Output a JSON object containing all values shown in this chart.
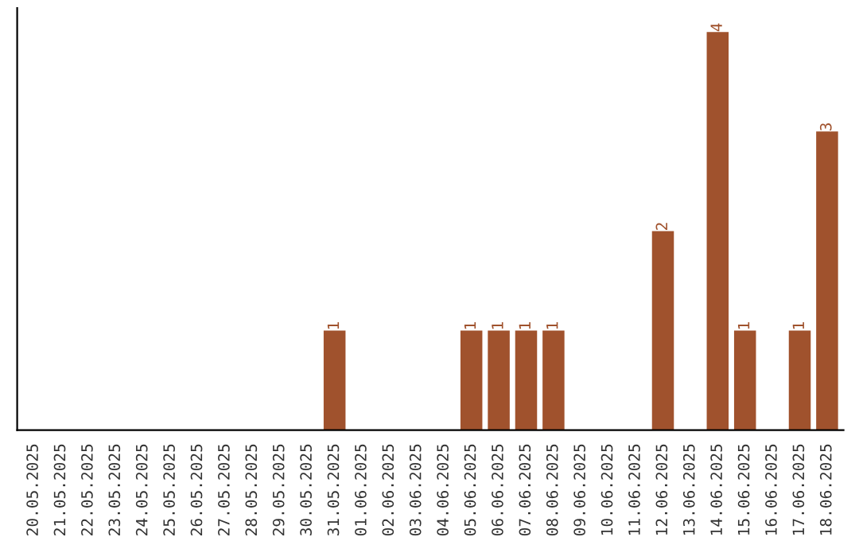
{
  "chart_data": {
    "type": "bar",
    "categories": [
      "20.05.2025",
      "21.05.2025",
      "22.05.2025",
      "23.05.2025",
      "24.05.2025",
      "25.05.2025",
      "26.05.2025",
      "27.05.2025",
      "28.05.2025",
      "29.05.2025",
      "30.05.2025",
      "31.05.2025",
      "01.06.2025",
      "02.06.2025",
      "03.06.2025",
      "04.06.2025",
      "05.06.2025",
      "06.06.2025",
      "07.06.2025",
      "08.06.2025",
      "09.06.2025",
      "10.06.2025",
      "11.06.2025",
      "12.06.2025",
      "13.06.2025",
      "14.06.2025",
      "15.06.2025",
      "16.06.2025",
      "17.06.2025",
      "18.06.2025"
    ],
    "values": [
      0,
      0,
      0,
      0,
      0,
      0,
      0,
      0,
      0,
      0,
      0,
      1,
      0,
      0,
      0,
      0,
      1,
      1,
      1,
      1,
      0,
      0,
      0,
      2,
      0,
      4,
      1,
      0,
      1,
      3
    ],
    "value_labels": [
      null,
      null,
      null,
      null,
      null,
      null,
      null,
      null,
      null,
      null,
      null,
      "1",
      null,
      null,
      null,
      null,
      "1",
      "1",
      "1",
      "1",
      null,
      null,
      null,
      "2",
      null,
      "4",
      "1",
      null,
      "1",
      "3"
    ],
    "color": "#a0522d",
    "tick_labels": "x",
    "grid": false,
    "legend": false
  }
}
